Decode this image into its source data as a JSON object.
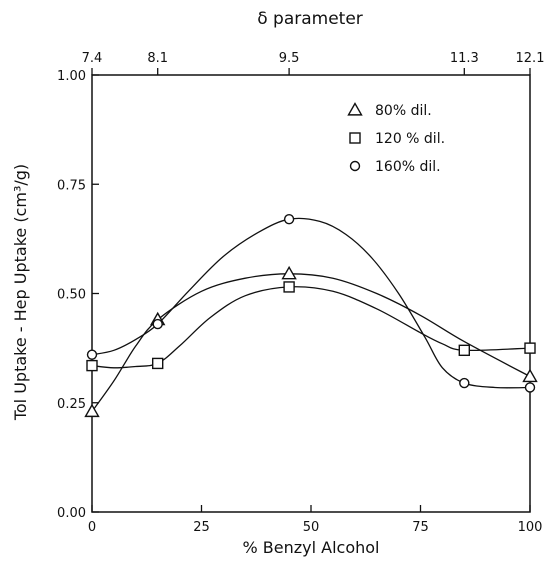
{
  "chart_data": {
    "type": "line",
    "title": "",
    "xlabel": "% Benzyl Alcohol",
    "ylabel": "Tol Uptake - Hep Uptake (cm³/g)",
    "xlim": [
      0,
      100
    ],
    "ylim": [
      0.0,
      1.0
    ],
    "xticks": [
      0,
      25,
      50,
      75,
      100
    ],
    "xtick_labels": [
      "0",
      "25",
      "50",
      "75",
      "100"
    ],
    "yticks": [
      0.0,
      0.25,
      0.5,
      0.75,
      1.0
    ],
    "ytick_labels": [
      "0.00",
      "0.25",
      "0.50",
      "0.75",
      "1.00"
    ],
    "top_axis": {
      "label": "δ parameter",
      "ticks": [
        0,
        15,
        45,
        85,
        100
      ],
      "tick_labels": [
        "7.4",
        "8.1",
        "9.5",
        "11.3",
        "12.1"
      ]
    },
    "legend_position": "top-right",
    "grid": false,
    "series": [
      {
        "name": "80% dil.",
        "marker": "triangle",
        "x": [
          0,
          15,
          45,
          100
        ],
        "y": [
          0.23,
          0.44,
          0.545,
          0.31
        ],
        "curve": [
          [
            0,
            0.23
          ],
          [
            5,
            0.3
          ],
          [
            10,
            0.38
          ],
          [
            15,
            0.44
          ],
          [
            25,
            0.505
          ],
          [
            35,
            0.535
          ],
          [
            45,
            0.545
          ],
          [
            55,
            0.535
          ],
          [
            65,
            0.5
          ],
          [
            75,
            0.45
          ],
          [
            85,
            0.39
          ],
          [
            100,
            0.31
          ]
        ]
      },
      {
        "name": "120 % dil.",
        "marker": "square",
        "x": [
          0,
          15,
          45,
          85,
          100
        ],
        "y": [
          0.335,
          0.34,
          0.515,
          0.37,
          0.375
        ],
        "curve": [
          [
            0,
            0.335
          ],
          [
            5,
            0.33
          ],
          [
            10,
            0.333
          ],
          [
            15,
            0.34
          ],
          [
            20,
            0.38
          ],
          [
            27,
            0.445
          ],
          [
            35,
            0.495
          ],
          [
            45,
            0.515
          ],
          [
            55,
            0.505
          ],
          [
            65,
            0.465
          ],
          [
            75,
            0.41
          ],
          [
            80,
            0.385
          ],
          [
            85,
            0.37
          ],
          [
            100,
            0.375
          ]
        ]
      },
      {
        "name": "160% dil.",
        "marker": "circle",
        "x": [
          0,
          15,
          45,
          85,
          100
        ],
        "y": [
          0.36,
          0.43,
          0.67,
          0.295,
          0.285
        ],
        "curve": [
          [
            0,
            0.36
          ],
          [
            5,
            0.37
          ],
          [
            10,
            0.395
          ],
          [
            15,
            0.43
          ],
          [
            22,
            0.505
          ],
          [
            30,
            0.585
          ],
          [
            38,
            0.64
          ],
          [
            45,
            0.67
          ],
          [
            52,
            0.665
          ],
          [
            58,
            0.635
          ],
          [
            64,
            0.58
          ],
          [
            70,
            0.5
          ],
          [
            76,
            0.4
          ],
          [
            80,
            0.33
          ],
          [
            85,
            0.295
          ],
          [
            92,
            0.285
          ],
          [
            100,
            0.285
          ]
        ]
      }
    ]
  }
}
